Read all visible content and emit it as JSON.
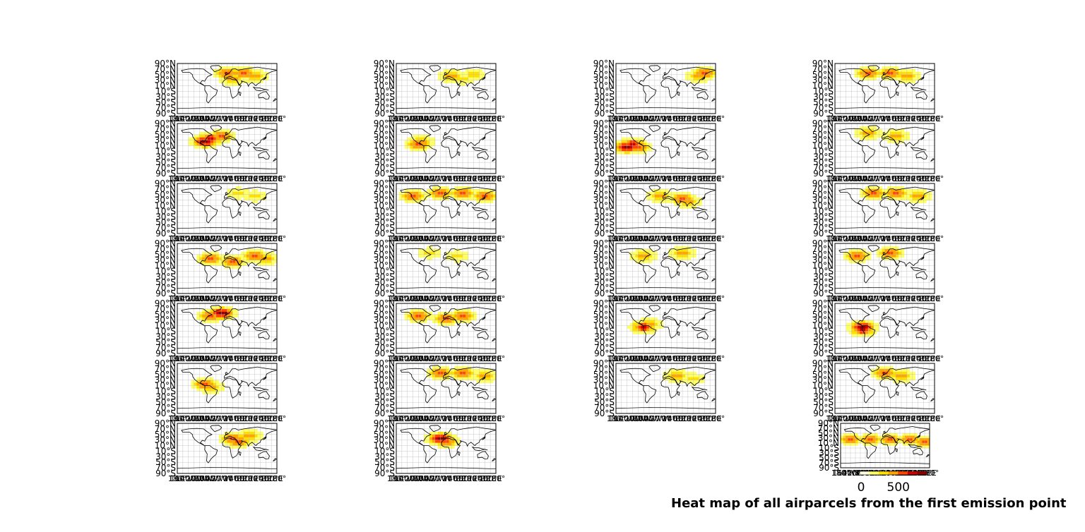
{
  "figure": {
    "suptitle": "Heat map of all airparcels from the first emission point"
  },
  "colors": {
    "colormap": [
      "#ffffe0",
      "#ffff66",
      "#ffe000",
      "#ffa500",
      "#ff4500",
      "#cc0000",
      "#8b0000"
    ],
    "coast": "#000000",
    "grid": "#bbbbbb"
  },
  "chart_data": {
    "type": "heatmap",
    "title": "Heat map of all airparcels from the first emission point",
    "panel_count": 27,
    "grid": "on",
    "projection": "cylindrical (plate carree)",
    "ytick_labels": [
      "90°N",
      "70°N",
      "50°N",
      "30°N",
      "10°N",
      "10°S",
      "30°S",
      "50°S",
      "70°S",
      "90°S"
    ],
    "xtick_labels": [
      "180°",
      "160°W",
      "140°W",
      "120°W",
      "100°W",
      "80°W",
      "60°W",
      "40°W",
      "20°W",
      "0°",
      "20°E",
      "40°E",
      "60°E",
      "80°E",
      "100°E",
      "120°E",
      "140°E",
      "160°E",
      "180°"
    ],
    "colorbar": {
      "ticks": [
        "0",
        "500"
      ],
      "range": [
        0,
        900
      ]
    },
    "panels": [
      {
        "panel": 1,
        "hotspots": [
          [
            55,
            0,
            4
          ],
          [
            55,
            60,
            4
          ],
          [
            45,
            100,
            3
          ],
          [
            35,
            20,
            3
          ]
        ]
      },
      {
        "panel": 2,
        "hotspots": [
          [
            45,
            20,
            3
          ],
          [
            50,
            100,
            2
          ],
          [
            35,
            60,
            2
          ]
        ]
      },
      {
        "panel": 3,
        "hotspots": [
          [
            55,
            140,
            4
          ],
          [
            45,
            120,
            3
          ]
        ]
      },
      {
        "panel": 4,
        "hotspots": [
          [
            55,
            -60,
            4
          ],
          [
            55,
            20,
            4
          ],
          [
            45,
            80,
            3
          ]
        ]
      },
      {
        "panel": 5,
        "hotspots": [
          [
            35,
            -60,
            5
          ],
          [
            25,
            -80,
            6
          ],
          [
            45,
            -20,
            4
          ]
        ]
      },
      {
        "panel": 6,
        "hotspots": [
          [
            15,
            -100,
            4
          ],
          [
            25,
            -90,
            3
          ]
        ]
      },
      {
        "panel": 7,
        "hotspots": [
          [
            5,
            -140,
            6
          ],
          [
            15,
            -120,
            5
          ],
          [
            5,
            -100,
            4
          ]
        ]
      },
      {
        "panel": 8,
        "hotspots": [
          [
            55,
            -60,
            3
          ],
          [
            45,
            40,
            3
          ]
        ]
      },
      {
        "panel": 9,
        "hotspots": [
          [
            55,
            40,
            2
          ],
          [
            45,
            100,
            2
          ]
        ]
      },
      {
        "panel": 10,
        "hotspots": [
          [
            45,
            -120,
            4
          ],
          [
            55,
            -20,
            4
          ],
          [
            55,
            60,
            4
          ],
          [
            45,
            140,
            4
          ]
        ]
      },
      {
        "panel": 11,
        "hotspots": [
          [
            35,
            60,
            4
          ],
          [
            45,
            -20,
            3
          ],
          [
            25,
            80,
            3
          ]
        ]
      },
      {
        "panel": 12,
        "hotspots": [
          [
            55,
            -40,
            4
          ],
          [
            55,
            40,
            4
          ],
          [
            45,
            120,
            3
          ]
        ]
      },
      {
        "panel": 13,
        "hotspots": [
          [
            35,
            -60,
            4
          ],
          [
            25,
            20,
            4
          ],
          [
            45,
            100,
            4
          ],
          [
            35,
            140,
            3
          ]
        ]
      },
      {
        "panel": 14,
        "hotspots": [
          [
            45,
            40,
            2
          ],
          [
            55,
            -60,
            2
          ]
        ]
      },
      {
        "panel": 15,
        "hotspots": [
          [
            45,
            -80,
            3
          ],
          [
            55,
            60,
            3
          ]
        ]
      },
      {
        "panel": 16,
        "hotspots": [
          [
            45,
            -100,
            4
          ],
          [
            55,
            20,
            4
          ]
        ]
      },
      {
        "panel": 17,
        "hotspots": [
          [
            55,
            -20,
            6
          ],
          [
            45,
            -60,
            4
          ]
        ]
      },
      {
        "panel": 18,
        "hotspots": [
          [
            45,
            -100,
            4
          ],
          [
            35,
            0,
            4
          ],
          [
            45,
            60,
            4
          ]
        ]
      },
      {
        "panel": 19,
        "hotspots": [
          [
            5,
            -80,
            5
          ],
          [
            15,
            -60,
            3
          ]
        ]
      },
      {
        "panel": 20,
        "hotspots": [
          [
            5,
            -80,
            6
          ],
          [
            -5,
            -80,
            5
          ]
        ]
      },
      {
        "panel": 21,
        "hotspots": [
          [
            15,
            -80,
            4
          ],
          [
            5,
            -60,
            3
          ]
        ]
      },
      {
        "panel": 22,
        "hotspots": [
          [
            55,
            -20,
            4
          ],
          [
            55,
            60,
            4
          ],
          [
            45,
            140,
            3
          ]
        ]
      },
      {
        "panel": 23,
        "hotspots": [
          [
            45,
            40,
            3
          ],
          [
            35,
            100,
            2
          ]
        ]
      },
      {
        "panel": 24,
        "hotspots": [
          [
            55,
            0,
            4
          ],
          [
            45,
            60,
            3
          ]
        ]
      },
      {
        "panel": 25,
        "hotspots": [
          [
            35,
            20,
            4
          ],
          [
            25,
            40,
            4
          ],
          [
            45,
            80,
            3
          ]
        ]
      },
      {
        "panel": 26,
        "hotspots": [
          [
            35,
            -20,
            6
          ],
          [
            25,
            0,
            4
          ]
        ]
      },
      {
        "panel": 27,
        "hotspots": [
          [
            25,
            -140,
            4
          ],
          [
            25,
            -60,
            4
          ],
          [
            25,
            20,
            4
          ],
          [
            25,
            100,
            4
          ],
          [
            15,
            160,
            4
          ]
        ]
      }
    ]
  }
}
